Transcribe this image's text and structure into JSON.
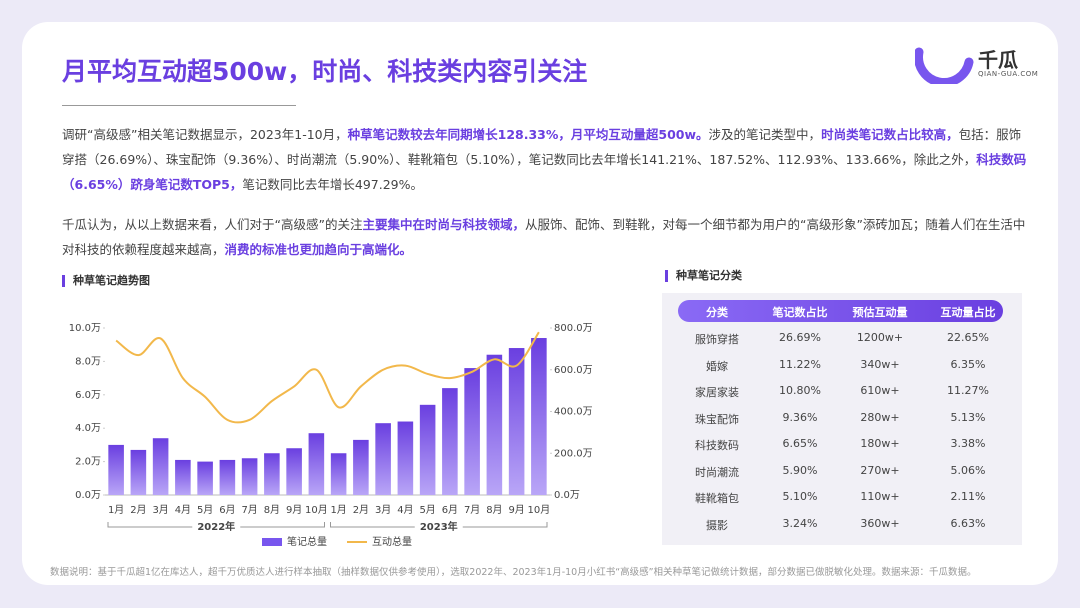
{
  "header": {
    "title": "月平均互动超500w，时尚、科技类内容引关注",
    "logo": "千瓜",
    "logo_sub": "QIAN-GUA.COM"
  },
  "paragraphs": [
    [
      {
        "text": "调研“高级感”相关笔记数据显示，2023年1-10月，",
        "em": false
      },
      {
        "text": "种草笔记数较去年同期增长128.33%，月平均互动量超500w。",
        "em": true
      },
      {
        "text": "涉及的笔记类型中，",
        "em": false
      },
      {
        "text": "时尚类笔记数占比较高，",
        "em": true
      },
      {
        "text": "包括：服饰穿搭（26.69%）、珠宝配饰（9.36%）、时尚潮流（5.90%）、鞋靴箱包（5.10%），笔记数同比去年增长141.21%、187.52%、112.93%、133.66%，除此之外，",
        "em": false
      },
      {
        "text": "科技数码（6.65%）跻身笔记数TOP5，",
        "em": true
      },
      {
        "text": "笔记数同比去年增长497.29%。",
        "em": false
      }
    ],
    [
      {
        "text": "千瓜认为，从以上数据来看，人们对于“高级感”的关注",
        "em": false
      },
      {
        "text": "主要集中在时尚与科技领域，",
        "em": true
      },
      {
        "text": "从服饰、配饰、到鞋靴，对每一个细节都为用户的“高级形象”添砖加瓦；随着人们在生活中对科技的依赖程度越来越高，",
        "em": false
      },
      {
        "text": "消费的标准也更加趋向于高端化。",
        "em": true
      }
    ]
  ],
  "chart_data": {
    "type": "bar",
    "title": "种草笔记趋势图",
    "categories": [
      "1月",
      "2月",
      "3月",
      "4月",
      "5月",
      "6月",
      "7月",
      "8月",
      "9月",
      "10月",
      "1月",
      "2月",
      "3月",
      "4月",
      "5月",
      "6月",
      "7月",
      "8月",
      "9月",
      "10月"
    ],
    "groups": [
      "2022年",
      "2023年"
    ],
    "series": [
      {
        "name": "笔记总量",
        "type": "bar",
        "color": "#7856ee",
        "values": [
          3.0,
          2.7,
          3.4,
          2.1,
          2.0,
          2.1,
          2.2,
          2.5,
          2.8,
          3.7,
          2.5,
          3.3,
          4.3,
          4.4,
          5.4,
          6.4,
          7.6,
          8.4,
          8.8,
          9.4
        ]
      },
      {
        "name": "互动总量",
        "type": "line",
        "axis": "y2",
        "color": "#f2b84b",
        "values": [
          740,
          670,
          750,
          560,
          470,
          360,
          360,
          450,
          520,
          600,
          420,
          520,
          600,
          620,
          580,
          560,
          590,
          650,
          620,
          780
        ]
      }
    ],
    "ylim": [
      0,
      10
    ],
    "yticks": [
      {
        "value": 0,
        "label": "0.0万"
      },
      {
        "value": 2,
        "label": "2.0万"
      },
      {
        "value": 4,
        "label": "4.0万"
      },
      {
        "value": 6,
        "label": "6.0万"
      },
      {
        "value": 8,
        "label": "8.0万"
      },
      {
        "value": 10,
        "label": "10.0万"
      }
    ],
    "y2lim": [
      0,
      800
    ],
    "y2ticks": [
      {
        "value": 0,
        "label": "0.0万"
      },
      {
        "value": 200,
        "label": "200.0万"
      },
      {
        "value": 400,
        "label": "400.0万"
      },
      {
        "value": 600,
        "label": "600.0万"
      },
      {
        "value": 800,
        "label": "800.0万"
      }
    ]
  },
  "table": {
    "title": "种草笔记分类",
    "columns": [
      "分类",
      "笔记数占比",
      "预估互动量",
      "互动量占比"
    ],
    "rows": [
      [
        "服饰穿搭",
        "26.69%",
        "1200w+",
        "22.65%"
      ],
      [
        "婚嫁",
        "11.22%",
        "340w+",
        "6.35%"
      ],
      [
        "家居家装",
        "10.80%",
        "610w+",
        "11.27%"
      ],
      [
        "珠宝配饰",
        "9.36%",
        "280w+",
        "5.13%"
      ],
      [
        "科技数码",
        "6.65%",
        "180w+",
        "3.38%"
      ],
      [
        "时尚潮流",
        "5.90%",
        "270w+",
        "5.06%"
      ],
      [
        "鞋靴箱包",
        "5.10%",
        "110w+",
        "2.11%"
      ],
      [
        "摄影",
        "3.24%",
        "360w+",
        "6.63%"
      ]
    ]
  },
  "footnote": "数据说明：基于千瓜超1亿在库达人，超千万优质达人进行样本抽取（抽样数据仅供参考使用），选取2022年、2023年1月-10月小红书“高级感”相关种草笔记做统计数据，部分数据已做脱敏化处理。数据来源：千瓜数据。"
}
